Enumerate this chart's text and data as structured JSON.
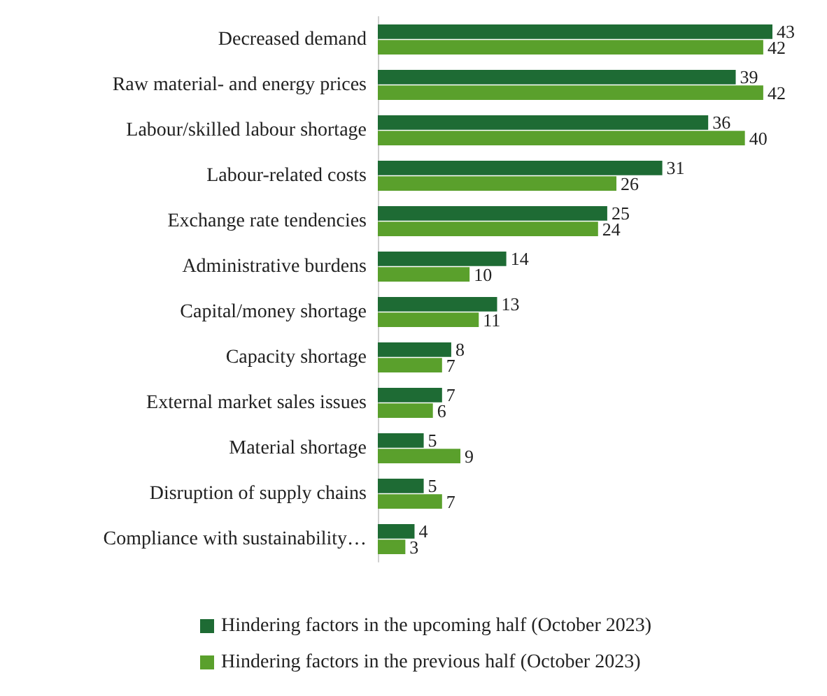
{
  "chart_data": {
    "type": "bar",
    "orientation": "horizontal",
    "categories": [
      "Decreased demand",
      "Raw material- and energy prices",
      "Labour/skilled labour shortage",
      "Labour-related costs",
      "Exchange rate tendencies",
      "Administrative burdens",
      "Capital/money shortage",
      "Capacity shortage",
      "External market sales issues",
      "Material shortage",
      "Disruption of supply chains",
      "Compliance with sustainability…"
    ],
    "series": [
      {
        "name": "Hindering factors in the upcoming half (October 2023)",
        "color": "#1e6b34",
        "values": [
          43,
          39,
          36,
          31,
          25,
          14,
          13,
          8,
          7,
          5,
          5,
          4
        ]
      },
      {
        "name": "Hindering factors in the previous half (October 2023)",
        "color": "#5aa02c",
        "values": [
          42,
          42,
          40,
          26,
          24,
          10,
          11,
          7,
          6,
          9,
          7,
          3
        ]
      }
    ],
    "data_labels": true,
    "legend": "bottom"
  }
}
